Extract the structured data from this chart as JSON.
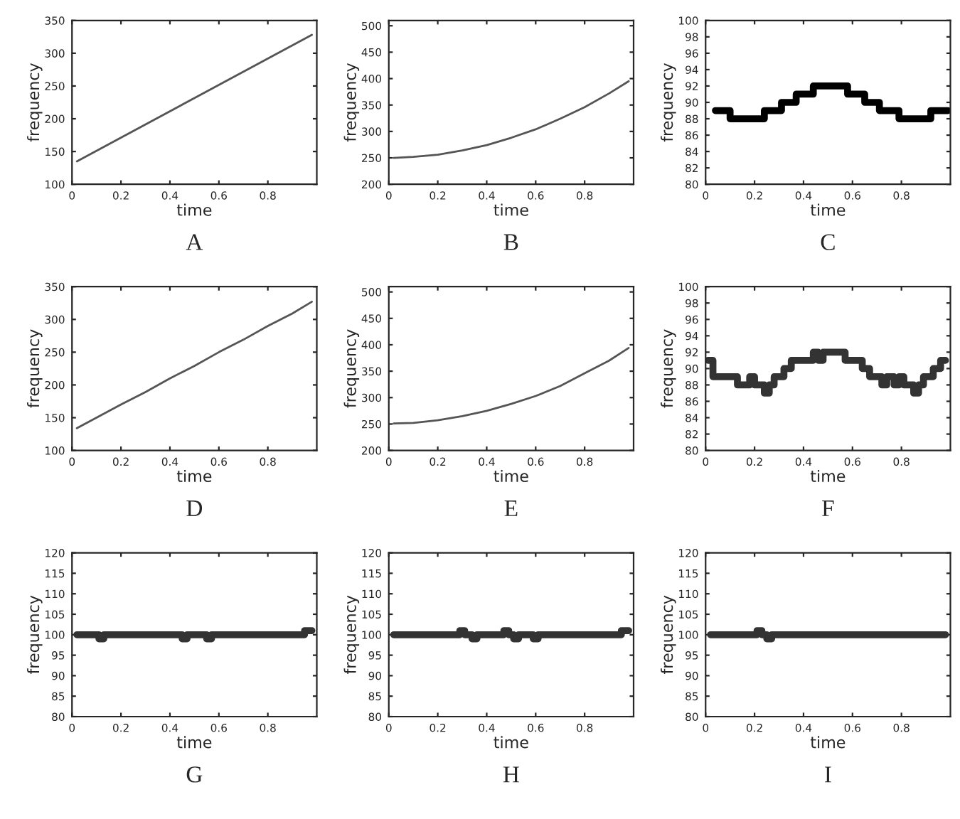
{
  "chart_data": [
    {
      "type": "line",
      "xlabel": "time",
      "ylabel": "frequency",
      "annotations": [
        "A"
      ],
      "xlim": [
        0,
        1
      ],
      "ylim": [
        100,
        350
      ],
      "xticks": [
        0,
        0.2,
        0.4,
        0.6,
        0.8
      ],
      "yticks": [
        100,
        150,
        200,
        250,
        300,
        350
      ],
      "grid": false,
      "series": [
        {
          "color": "#555555",
          "x": [
            0.02,
            0.98
          ],
          "values": [
            135,
            328
          ]
        }
      ]
    },
    {
      "type": "line",
      "xlabel": "time",
      "ylabel": "frequency",
      "annotations": [
        "B"
      ],
      "xlim": [
        0,
        1
      ],
      "ylim": [
        200,
        510
      ],
      "xticks": [
        0,
        0.2,
        0.4,
        0.6,
        0.8
      ],
      "yticks": [
        200,
        250,
        300,
        350,
        400,
        450,
        500
      ],
      "grid": false,
      "series": [
        {
          "color": "#555555",
          "x": [
            0.02,
            0.1,
            0.2,
            0.3,
            0.4,
            0.5,
            0.6,
            0.7,
            0.8,
            0.9,
            0.98
          ],
          "values": [
            250,
            252,
            256,
            264,
            274,
            288,
            304,
            324,
            346,
            372,
            395
          ]
        }
      ]
    },
    {
      "type": "step",
      "xlabel": "time",
      "ylabel": "frequency",
      "annotations": [
        "C"
      ],
      "xlim": [
        0,
        1
      ],
      "ylim": [
        80,
        100
      ],
      "xticks": [
        0,
        0.2,
        0.4,
        0.6,
        0.8
      ],
      "yticks": [
        80,
        82,
        84,
        86,
        88,
        90,
        92,
        94,
        96,
        98,
        100
      ],
      "grid": false,
      "series": [
        {
          "color": "#000000",
          "x": [
            0.04,
            0.1,
            0.24,
            0.31,
            0.37,
            0.44,
            0.58,
            0.65,
            0.71,
            0.79,
            0.92,
            0.99
          ],
          "values": [
            89,
            88,
            89,
            90,
            91,
            92,
            91,
            90,
            89,
            88,
            89,
            89
          ]
        }
      ]
    },
    {
      "type": "line",
      "xlabel": "time",
      "ylabel": "frequency",
      "annotations": [
        "D"
      ],
      "xlim": [
        0,
        1
      ],
      "ylim": [
        100,
        350
      ],
      "xticks": [
        0,
        0.2,
        0.4,
        0.6,
        0.8
      ],
      "yticks": [
        100,
        150,
        200,
        250,
        300,
        350
      ],
      "grid": false,
      "series": [
        {
          "color": "#555555",
          "x": [
            0.02,
            0.1,
            0.2,
            0.3,
            0.4,
            0.5,
            0.6,
            0.7,
            0.8,
            0.9,
            0.98
          ],
          "values": [
            134,
            150,
            170,
            189,
            210,
            229,
            250,
            269,
            290,
            309,
            327
          ]
        }
      ]
    },
    {
      "type": "line",
      "xlabel": "time",
      "ylabel": "frequency",
      "annotations": [
        "E"
      ],
      "xlim": [
        0,
        1
      ],
      "ylim": [
        200,
        510
      ],
      "xticks": [
        0,
        0.2,
        0.4,
        0.6,
        0.8
      ],
      "yticks": [
        200,
        250,
        300,
        350,
        400,
        450,
        500
      ],
      "grid": false,
      "series": [
        {
          "color": "#555555",
          "x": [
            0.02,
            0.1,
            0.2,
            0.3,
            0.4,
            0.5,
            0.6,
            0.7,
            0.8,
            0.9,
            0.98
          ],
          "values": [
            251,
            252,
            257,
            265,
            275,
            288,
            303,
            322,
            346,
            370,
            394
          ]
        }
      ]
    },
    {
      "type": "step",
      "xlabel": "time",
      "ylabel": "frequency",
      "annotations": [
        "F"
      ],
      "xlim": [
        0,
        1
      ],
      "ylim": [
        80,
        100
      ],
      "xticks": [
        0,
        0.2,
        0.4,
        0.6,
        0.8
      ],
      "yticks": [
        80,
        82,
        84,
        86,
        88,
        90,
        92,
        94,
        96,
        98,
        100
      ],
      "grid": false,
      "series": [
        {
          "color": "#333333",
          "x": [
            0.01,
            0.03,
            0.13,
            0.18,
            0.2,
            0.22,
            0.24,
            0.26,
            0.28,
            0.32,
            0.35,
            0.44,
            0.46,
            0.48,
            0.57,
            0.64,
            0.67,
            0.72,
            0.74,
            0.77,
            0.79,
            0.81,
            0.85,
            0.87,
            0.89,
            0.93,
            0.96,
            0.98
          ],
          "values": [
            91,
            89,
            88,
            89,
            88,
            88,
            87,
            88,
            89,
            90,
            91,
            92,
            91,
            92,
            91,
            90,
            89,
            88,
            89,
            88,
            89,
            88,
            87,
            88,
            89,
            90,
            91,
            91
          ]
        }
      ]
    },
    {
      "type": "step",
      "xlabel": "time",
      "ylabel": "frequency",
      "annotations": [
        "G"
      ],
      "xlim": [
        0,
        1
      ],
      "ylim": [
        80,
        120
      ],
      "xticks": [
        0,
        0.2,
        0.4,
        0.6,
        0.8
      ],
      "yticks": [
        80,
        85,
        90,
        95,
        100,
        105,
        110,
        115,
        120
      ],
      "grid": false,
      "series": [
        {
          "color": "#333333",
          "x": [
            0.02,
            0.11,
            0.13,
            0.45,
            0.47,
            0.55,
            0.57,
            0.95,
            0.98
          ],
          "values": [
            100,
            99,
            100,
            99,
            100,
            99,
            100,
            101,
            101
          ]
        }
      ]
    },
    {
      "type": "step",
      "xlabel": "time",
      "ylabel": "frequency",
      "annotations": [
        "H"
      ],
      "xlim": [
        0,
        1
      ],
      "ylim": [
        80,
        120
      ],
      "xticks": [
        0,
        0.2,
        0.4,
        0.6,
        0.8
      ],
      "yticks": [
        80,
        85,
        90,
        95,
        100,
        105,
        110,
        115,
        120
      ],
      "grid": false,
      "series": [
        {
          "color": "#333333",
          "x": [
            0.02,
            0.29,
            0.31,
            0.34,
            0.36,
            0.47,
            0.49,
            0.51,
            0.53,
            0.59,
            0.61,
            0.95,
            0.98
          ],
          "values": [
            100,
            101,
            100,
            99,
            100,
            101,
            100,
            99,
            100,
            99,
            100,
            101,
            101
          ]
        }
      ]
    },
    {
      "type": "step",
      "xlabel": "time",
      "ylabel": "frequency",
      "annotations": [
        "I"
      ],
      "xlim": [
        0,
        1
      ],
      "ylim": [
        80,
        120
      ],
      "xticks": [
        0,
        0.2,
        0.4,
        0.6,
        0.8
      ],
      "yticks": [
        80,
        85,
        90,
        95,
        100,
        105,
        110,
        115,
        120
      ],
      "grid": false,
      "series": [
        {
          "color": "#333333",
          "x": [
            0.02,
            0.21,
            0.23,
            0.25,
            0.27,
            0.98
          ],
          "values": [
            100,
            101,
            100,
            99,
            100,
            100
          ]
        }
      ]
    }
  ]
}
